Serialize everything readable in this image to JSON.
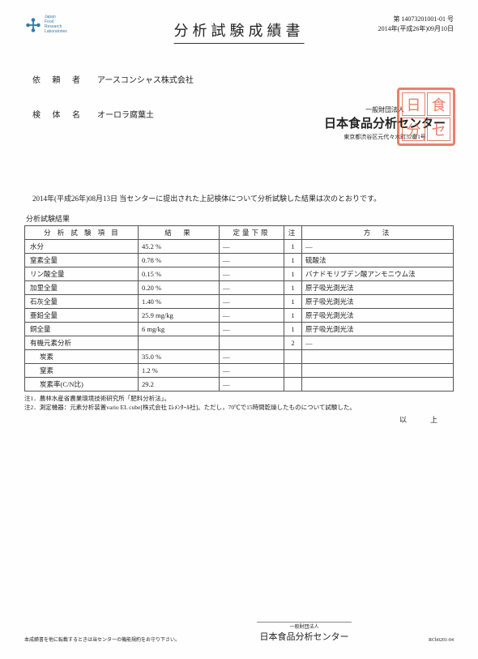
{
  "logo": {
    "line1": "Japan",
    "line2": "Food",
    "line3": "Research",
    "line4": "Laboratories"
  },
  "doc_no_line1": "第 14073201001-01 号",
  "doc_no_line2": "2014年(平成26年)09月10日",
  "title": "分析試験成績書",
  "requester": {
    "label": "依 頼 者",
    "value": "アースコンシャス株式会社"
  },
  "sample": {
    "label": "検 体 名",
    "value": "オーロラ腐葉土"
  },
  "issuer": {
    "pre": "一般財団法人",
    "name": "日本食品分析センター",
    "addr": "東京都渋谷区元代々木町52番1号"
  },
  "body_text": "2014年(平成26年)08月13日 当センターに提出された上記検体について分析試験した結果は次のとおりです。",
  "results_label": "分析試験結果",
  "table": {
    "headers": [
      "分 析 試 験 項 目",
      "結　果",
      "定量下限",
      "注",
      "方　法"
    ],
    "rows": [
      {
        "item": "水分",
        "result": "45.2 %",
        "lower": "―",
        "note": "1",
        "method": "―"
      },
      {
        "item": "窒素全量",
        "result": "0.78 %",
        "lower": "―",
        "note": "1",
        "method": "硫酸法"
      },
      {
        "item": "リン酸全量",
        "result": "0.15 %",
        "lower": "―",
        "note": "1",
        "method": "バナドモリブデン酸アンモニウム法"
      },
      {
        "item": "加里全量",
        "result": "0.20 %",
        "lower": "―",
        "note": "1",
        "method": "原子吸光測光法"
      },
      {
        "item": "石灰全量",
        "result": "1.40 %",
        "lower": "―",
        "note": "1",
        "method": "原子吸光測光法"
      },
      {
        "item": "亜鉛全量",
        "result": "25.9 mg/kg",
        "lower": "―",
        "note": "1",
        "method": "原子吸光測光法"
      },
      {
        "item": "銅全量",
        "result": "6 mg/kg",
        "lower": "―",
        "note": "1",
        "method": "原子吸光測光法"
      },
      {
        "item": "有機元素分析",
        "result": "",
        "lower": "",
        "note": "2",
        "method": "―"
      },
      {
        "item": "炭素",
        "result": "35.0 %",
        "lower": "―",
        "note": "",
        "method": "",
        "indent": true
      },
      {
        "item": "窒素",
        "result": "1.2 %",
        "lower": "―",
        "note": "",
        "method": "",
        "indent": true
      },
      {
        "item": "炭素率(C/N比)",
        "result": "29.2",
        "lower": "―",
        "note": "",
        "method": "",
        "indent": true
      }
    ]
  },
  "note1": "注1．農林水産省農業環境技術研究所「肥料分析法」。",
  "note2": "注2．測定機器：元素分析装置vario EL cube[株式会社 ｴﾚﾒﾝﾀｰﾙ社]。ただし，70℃で15時間乾燥したものについて試験した。",
  "closing": "以　上",
  "footer": {
    "left": "本成績書を他に転載するときは当センターの機能規約をお守り下さい。",
    "center_small": "一般財団法人",
    "center_name": "日本食品分析センター",
    "right": "RCb0201-04"
  }
}
